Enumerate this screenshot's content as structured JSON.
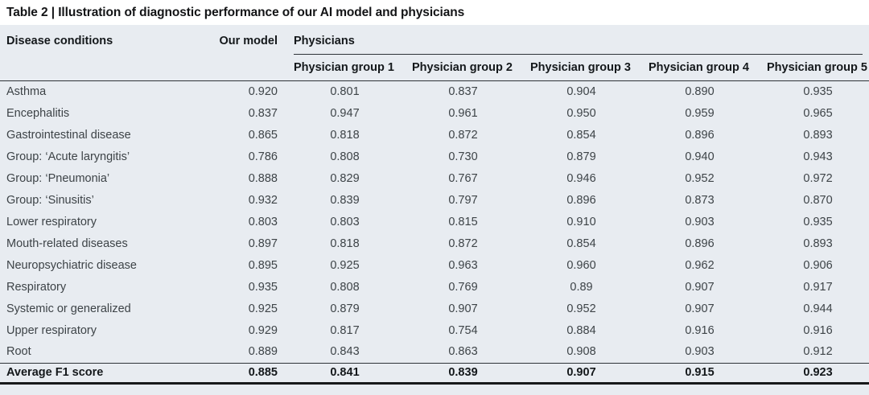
{
  "table": {
    "title": "Table 2 | Illustration of diagnostic performance of our AI model and physicians",
    "columns": {
      "disease": "Disease conditions",
      "our_model": "Our model",
      "physicians": "Physicians",
      "physician_groups": [
        "Physician group 1",
        "Physician group 2",
        "Physician group 3",
        "Physician group 4",
        "Physician group 5"
      ]
    },
    "rows": [
      {
        "condition": "Asthma",
        "values": [
          "0.920",
          "0.801",
          "0.837",
          "0.904",
          "0.890",
          "0.935"
        ]
      },
      {
        "condition": "Encephalitis",
        "values": [
          "0.837",
          "0.947",
          "0.961",
          "0.950",
          "0.959",
          "0.965"
        ]
      },
      {
        "condition": "Gastrointestinal disease",
        "values": [
          "0.865",
          "0.818",
          "0.872",
          "0.854",
          "0.896",
          "0.893"
        ]
      },
      {
        "condition": "Group: ‘Acute laryngitis’",
        "values": [
          "0.786",
          "0.808",
          "0.730",
          "0.879",
          "0.940",
          "0.943"
        ]
      },
      {
        "condition": "Group: ‘Pneumonia’",
        "values": [
          "0.888",
          "0.829",
          "0.767",
          "0.946",
          "0.952",
          "0.972"
        ]
      },
      {
        "condition": "Group: ‘Sinusitis’",
        "values": [
          "0.932",
          "0.839",
          "0.797",
          "0.896",
          "0.873",
          "0.870"
        ]
      },
      {
        "condition": "Lower respiratory",
        "values": [
          "0.803",
          "0.803",
          "0.815",
          "0.910",
          "0.903",
          "0.935"
        ]
      },
      {
        "condition": "Mouth-related diseases",
        "values": [
          "0.897",
          "0.818",
          "0.872",
          "0.854",
          "0.896",
          "0.893"
        ]
      },
      {
        "condition": "Neuropsychiatric disease",
        "values": [
          "0.895",
          "0.925",
          "0.963",
          "0.960",
          "0.962",
          "0.906"
        ]
      },
      {
        "condition": "Respiratory",
        "values": [
          "0.935",
          "0.808",
          "0.769",
          "0.89",
          "0.907",
          "0.917"
        ]
      },
      {
        "condition": "Systemic or generalized",
        "values": [
          "0.925",
          "0.879",
          "0.907",
          "0.952",
          "0.907",
          "0.944"
        ]
      },
      {
        "condition": "Upper respiratory",
        "values": [
          "0.929",
          "0.817",
          "0.754",
          "0.884",
          "0.916",
          "0.916"
        ]
      },
      {
        "condition": "Root",
        "values": [
          "0.889",
          "0.843",
          "0.863",
          "0.908",
          "0.903",
          "0.912"
        ]
      }
    ],
    "footer": {
      "label": "Average F1 score",
      "values": [
        "0.885",
        "0.841",
        "0.839",
        "0.907",
        "0.915",
        "0.923"
      ]
    },
    "colors": {
      "band_background": "#e8ecf1",
      "thin_rule": "#2e3338",
      "bottom_rule": "#17191a",
      "body_text": "#3d4347",
      "heading_text": "#14181b"
    }
  }
}
